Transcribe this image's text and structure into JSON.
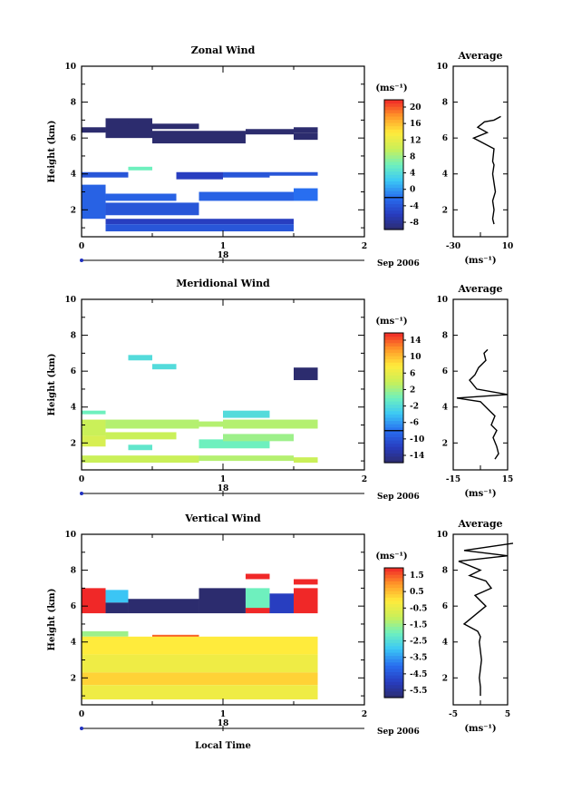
{
  "chart_data": [
    {
      "type": "heatmap",
      "title": "Zonal Wind",
      "ylabel": "Height (km)",
      "xlim": [
        0,
        2
      ],
      "ylim": [
        0.5,
        10
      ],
      "x_ticks": [
        "0",
        "1",
        "2"
      ],
      "y_ticks": [
        "2",
        "4",
        "6",
        "8",
        "10"
      ],
      "time_axis": {
        "day": "18",
        "label": "Sep 2006"
      },
      "colorbar": {
        "unit": "(ms⁻¹)",
        "ticks": [
          "20",
          "16",
          "12",
          "8",
          "4",
          "0",
          "-4",
          "-8"
        ],
        "min": -10,
        "max": 22
      },
      "cells": [
        {
          "x0": 0.0,
          "x1": 0.17,
          "y0": 6.3,
          "y1": 6.6,
          "v": -10
        },
        {
          "x0": 0.17,
          "x1": 0.5,
          "y0": 6.0,
          "y1": 7.1,
          "v": -10
        },
        {
          "x0": 0.33,
          "x1": 0.83,
          "y0": 6.5,
          "y1": 6.8,
          "v": -10
        },
        {
          "x0": 0.5,
          "x1": 1.16,
          "y0": 5.7,
          "y1": 6.4,
          "v": -10
        },
        {
          "x0": 1.16,
          "x1": 1.5,
          "y0": 6.2,
          "y1": 6.5,
          "v": -10
        },
        {
          "x0": 1.5,
          "x1": 1.67,
          "y0": 6.3,
          "y1": 6.6,
          "v": -10
        },
        {
          "x0": 1.5,
          "x1": 1.67,
          "y0": 5.9,
          "y1": 6.3,
          "v": -10
        },
        {
          "x0": 0.33,
          "x1": 0.5,
          "y0": 4.2,
          "y1": 4.4,
          "v": 6
        },
        {
          "x0": 0.0,
          "x1": 0.33,
          "y0": 3.8,
          "y1": 4.1,
          "v": -4
        },
        {
          "x0": 0.67,
          "x1": 1.0,
          "y0": 3.7,
          "y1": 4.1,
          "v": -6
        },
        {
          "x0": 1.0,
          "x1": 1.33,
          "y0": 3.8,
          "y1": 4.1,
          "v": -4
        },
        {
          "x0": 1.33,
          "x1": 1.67,
          "y0": 3.9,
          "y1": 4.1,
          "v": -4
        },
        {
          "x0": 0.0,
          "x1": 0.17,
          "y0": 1.5,
          "y1": 3.4,
          "v": -3
        },
        {
          "x0": 0.17,
          "x1": 0.83,
          "y0": 1.7,
          "y1": 2.4,
          "v": -4
        },
        {
          "x0": 0.17,
          "x1": 0.67,
          "y0": 2.5,
          "y1": 2.9,
          "v": -3
        },
        {
          "x0": 0.83,
          "x1": 1.5,
          "y0": 2.5,
          "y1": 3.0,
          "v": -3
        },
        {
          "x0": 1.5,
          "x1": 1.67,
          "y0": 2.5,
          "y1": 3.2,
          "v": -2
        },
        {
          "x0": 0.17,
          "x1": 1.5,
          "y0": 1.2,
          "y1": 1.5,
          "v": -6
        },
        {
          "x0": 0.17,
          "x1": 1.5,
          "y0": 0.8,
          "y1": 1.2,
          "v": -4
        }
      ],
      "average_profile": {
        "title": "Average",
        "xlabel": "(ms⁻¹)",
        "xlim": [
          -30,
          10
        ],
        "x_ticks": [
          "-30",
          "10"
        ],
        "height": [
          1.2,
          1.5,
          2.0,
          2.5,
          3.0,
          3.5,
          4.0,
          4.5,
          4.7,
          5.4,
          5.8,
          6.0,
          6.3,
          6.6,
          6.9,
          7.0,
          7.2
        ],
        "value": [
          0,
          -1,
          0,
          -1,
          1,
          0,
          -1,
          0,
          -1,
          0,
          -10,
          -15,
          -5,
          -12,
          -7,
          0,
          5
        ]
      }
    },
    {
      "type": "heatmap",
      "title": "Meridional Wind",
      "ylabel": "Height (km)",
      "xlim": [
        0,
        2
      ],
      "ylim": [
        0.5,
        10
      ],
      "x_ticks": [
        "0",
        "1",
        "2"
      ],
      "y_ticks": [
        "2",
        "4",
        "6",
        "8",
        "10"
      ],
      "time_axis": {
        "day": "18",
        "label": "Sep 2006"
      },
      "colorbar": {
        "unit": "(ms⁻¹)",
        "ticks": [
          "14",
          "10",
          "6",
          "2",
          "-2",
          "-6",
          "-10",
          "-14"
        ],
        "min": -16,
        "max": 16
      },
      "cells": [
        {
          "x0": 0.33,
          "x1": 0.5,
          "y0": 6.6,
          "y1": 6.9,
          "v": -2
        },
        {
          "x0": 0.5,
          "x1": 0.67,
          "y0": 6.1,
          "y1": 6.4,
          "v": -2
        },
        {
          "x0": 1.5,
          "x1": 1.67,
          "y0": 5.5,
          "y1": 6.2,
          "v": -16
        },
        {
          "x0": 0.0,
          "x1": 0.17,
          "y0": 3.6,
          "y1": 3.8,
          "v": 0
        },
        {
          "x0": 1.0,
          "x1": 1.33,
          "y0": 3.4,
          "y1": 3.8,
          "v": -2
        },
        {
          "x0": 0.0,
          "x1": 0.17,
          "y0": 2.4,
          "y1": 3.3,
          "v": 4
        },
        {
          "x0": 0.17,
          "x1": 0.83,
          "y0": 2.8,
          "y1": 3.3,
          "v": 3
        },
        {
          "x0": 0.83,
          "x1": 1.0,
          "y0": 2.9,
          "y1": 3.2,
          "v": 3
        },
        {
          "x0": 1.0,
          "x1": 1.67,
          "y0": 2.8,
          "y1": 3.3,
          "v": 3
        },
        {
          "x0": 0.0,
          "x1": 0.17,
          "y0": 1.8,
          "y1": 2.4,
          "v": 5
        },
        {
          "x0": 0.17,
          "x1": 0.67,
          "y0": 2.2,
          "y1": 2.6,
          "v": 4
        },
        {
          "x0": 0.33,
          "x1": 0.5,
          "y0": 1.6,
          "y1": 1.9,
          "v": -1
        },
        {
          "x0": 0.83,
          "x1": 1.33,
          "y0": 1.7,
          "y1": 2.2,
          "v": 0
        },
        {
          "x0": 1.0,
          "x1": 1.5,
          "y0": 2.1,
          "y1": 2.5,
          "v": 2
        },
        {
          "x0": 0.0,
          "x1": 0.83,
          "y0": 0.9,
          "y1": 1.3,
          "v": 4
        },
        {
          "x0": 0.83,
          "x1": 1.5,
          "y0": 1.0,
          "y1": 1.3,
          "v": 3
        },
        {
          "x0": 1.5,
          "x1": 1.67,
          "y0": 0.9,
          "y1": 1.2,
          "v": 4
        }
      ],
      "average_profile": {
        "title": "Average",
        "xlabel": "(ms⁻¹)",
        "xlim": [
          -15,
          15
        ],
        "x_ticks": [
          "-15",
          "15"
        ],
        "height": [
          1.1,
          1.4,
          1.8,
          2.3,
          2.7,
          3.0,
          3.5,
          3.9,
          4.3,
          4.5,
          4.7,
          5.0,
          5.5,
          5.8,
          6.2,
          6.6,
          7.0,
          7.2
        ],
        "value": [
          8,
          10,
          9,
          7,
          9,
          6,
          8,
          4,
          0,
          -13,
          15,
          -2,
          -6,
          -3,
          -1,
          3,
          2,
          4
        ]
      }
    },
    {
      "type": "heatmap",
      "title": "Vertical Wind",
      "ylabel": "Height (km)",
      "xlabel": "Local Time",
      "xlim": [
        0,
        2
      ],
      "ylim": [
        0.5,
        10
      ],
      "x_ticks": [
        "0",
        "1",
        "2"
      ],
      "y_ticks": [
        "2",
        "4",
        "6",
        "8",
        "10"
      ],
      "time_axis": {
        "day": "18",
        "label": "Sep 2006"
      },
      "colorbar": {
        "unit": "(ms⁻¹)",
        "ticks": [
          "1.5",
          "0.5",
          "-0.5",
          "-1.5",
          "-2.5",
          "-3.5",
          "-4.5",
          "-5.5"
        ],
        "min": -6,
        "max": 2
      },
      "cells": [
        {
          "x0": 0.0,
          "x1": 0.17,
          "y0": 5.6,
          "y1": 7.0,
          "v": 2
        },
        {
          "x0": 0.17,
          "x1": 0.33,
          "y0": 5.6,
          "y1": 6.2,
          "v": -6
        },
        {
          "x0": 0.17,
          "x1": 0.33,
          "y0": 6.2,
          "y1": 6.9,
          "v": -3
        },
        {
          "x0": 0.33,
          "x1": 0.83,
          "y0": 5.6,
          "y1": 6.4,
          "v": -6
        },
        {
          "x0": 0.83,
          "x1": 1.16,
          "y0": 5.6,
          "y1": 7.0,
          "v": -6
        },
        {
          "x0": 1.16,
          "x1": 1.33,
          "y0": 5.6,
          "y1": 7.0,
          "v": -2
        },
        {
          "x0": 1.16,
          "x1": 1.33,
          "y0": 5.6,
          "y1": 5.9,
          "v": 2
        },
        {
          "x0": 1.33,
          "x1": 1.5,
          "y0": 5.6,
          "y1": 6.7,
          "v": -5
        },
        {
          "x0": 1.5,
          "x1": 1.67,
          "y0": 5.6,
          "y1": 7.0,
          "v": 2
        },
        {
          "x0": 1.16,
          "x1": 1.33,
          "y0": 7.5,
          "y1": 7.8,
          "v": 2
        },
        {
          "x0": 1.5,
          "x1": 1.67,
          "y0": 7.2,
          "y1": 7.5,
          "v": 2
        },
        {
          "x0": 0.5,
          "x1": 0.83,
          "y0": 4.0,
          "y1": 4.4,
          "v": 1.5
        },
        {
          "x0": 0.0,
          "x1": 0.33,
          "y0": 4.3,
          "y1": 4.6,
          "v": -1.5
        },
        {
          "x0": 0.0,
          "x1": 1.67,
          "y0": 3.3,
          "y1": 4.3,
          "v": 0
        },
        {
          "x0": 0.0,
          "x1": 1.67,
          "y0": 2.3,
          "y1": 3.3,
          "v": -0.3
        },
        {
          "x0": 0.0,
          "x1": 1.67,
          "y0": 1.6,
          "y1": 2.3,
          "v": 0.3
        },
        {
          "x0": 0.0,
          "x1": 1.67,
          "y0": 0.8,
          "y1": 1.6,
          "v": -0.3
        }
      ],
      "average_profile": {
        "title": "Average",
        "xlabel": "(ms⁻¹)",
        "xlim": [
          -5,
          5
        ],
        "x_ticks": [
          "-5",
          "5"
        ],
        "height": [
          1.0,
          1.5,
          2.0,
          2.5,
          3.0,
          3.5,
          4.0,
          4.3,
          4.6,
          5.0,
          5.5,
          6.0,
          6.6,
          7.0,
          7.4,
          7.7,
          8.0,
          8.5,
          8.8,
          9.1,
          9.5
        ],
        "value": [
          0,
          0,
          -0.2,
          0,
          0.2,
          0,
          -0.2,
          0,
          -0.5,
          -3,
          -1,
          1,
          -1,
          2,
          1,
          -2,
          0,
          -4,
          5,
          -3,
          6
        ]
      }
    }
  ]
}
